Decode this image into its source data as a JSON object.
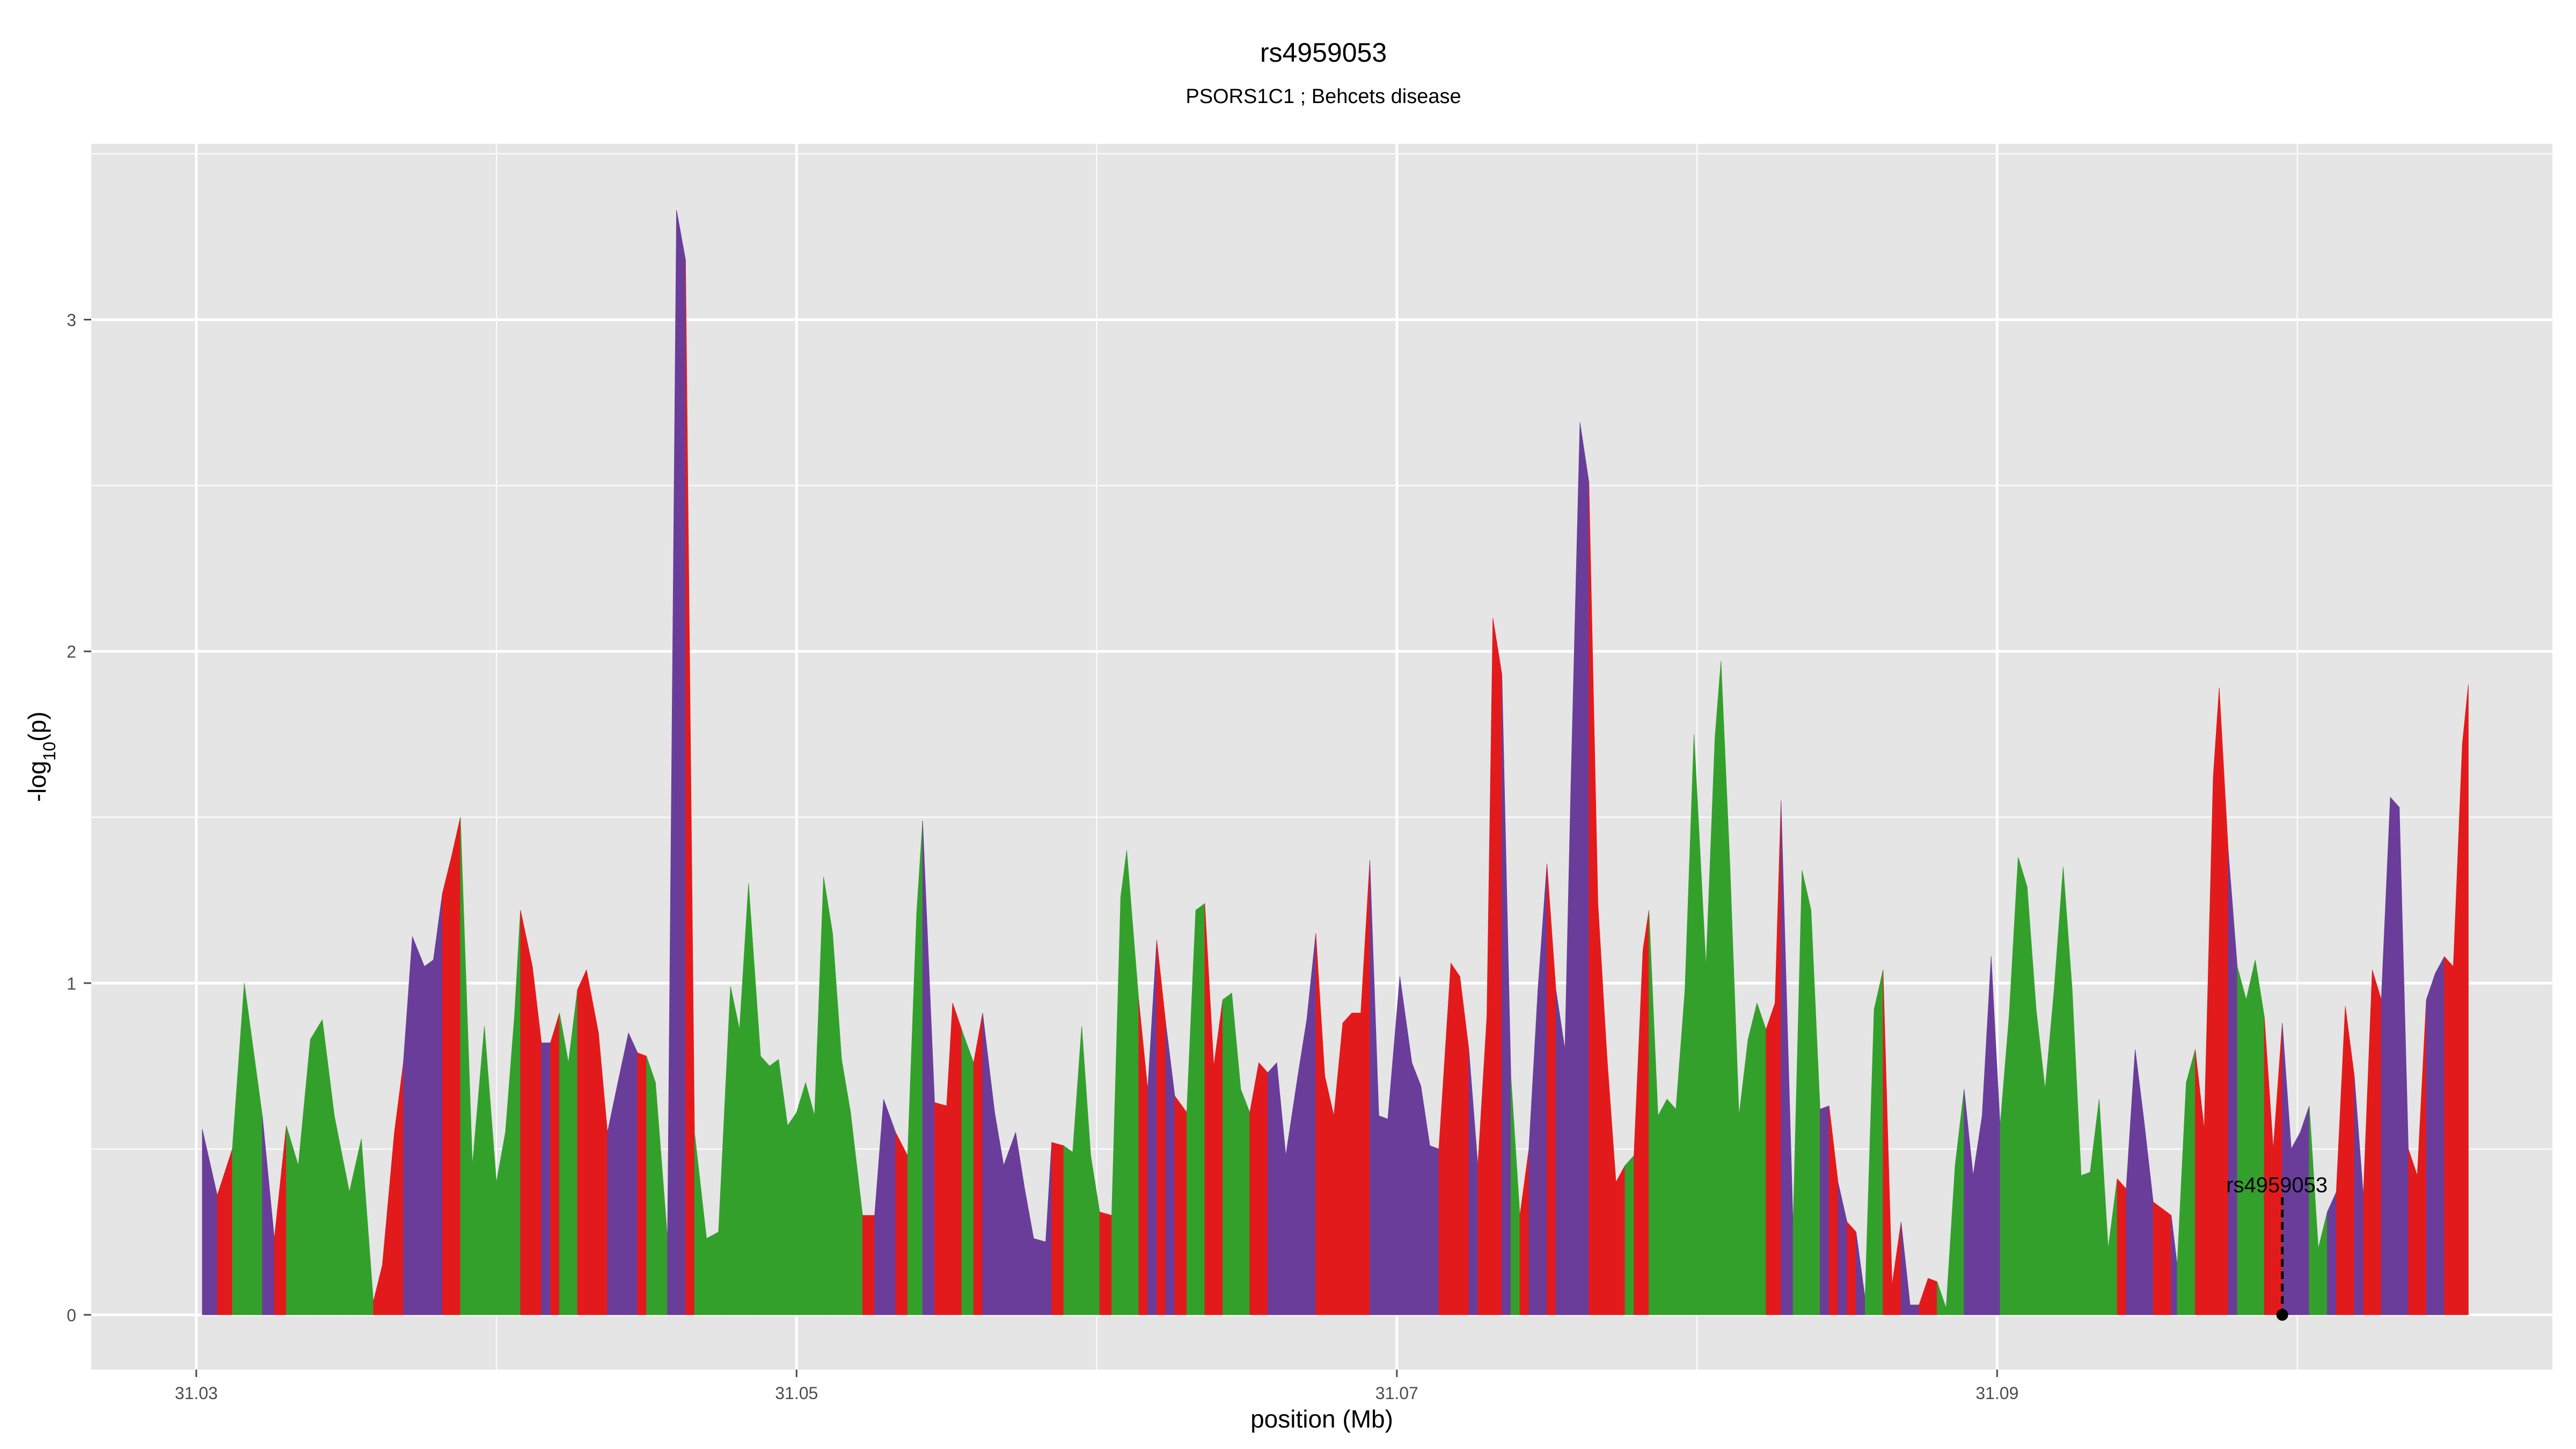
{
  "chart_data": {
    "type": "area",
    "title": "rs4959053",
    "subtitle": "PSORS1C1 ; Behcets disease",
    "xlabel": "position (Mb)",
    "ylabel": "-log10(p)",
    "xlim": [
      31.0265,
      31.1085
    ],
    "ylim": [
      -0.165,
      3.53
    ],
    "grid": true,
    "x_ticks": [
      31.03,
      31.05,
      31.07,
      31.09
    ],
    "x_tick_labels": [
      "31.03",
      "31.05",
      "31.07",
      "31.09"
    ],
    "y_ticks": [
      0,
      1,
      2,
      3
    ],
    "y_tick_labels": [
      "0",
      "1",
      "2",
      "3"
    ],
    "colors": {
      "green": "#33a02c",
      "red": "#e31a1c",
      "purple": "#6a3d9a",
      "panel": "#e5e5e5",
      "grid": "#ffffff"
    },
    "highlight": {
      "snp": "rs4959053",
      "x": 31.0995,
      "y": 0.0,
      "label_y": 0.37
    },
    "points": [
      [
        31.0302,
        0.56,
        "green"
      ],
      [
        31.0307,
        0.36,
        "purple"
      ],
      [
        31.0312,
        0.5,
        "red"
      ],
      [
        31.0316,
        1.0,
        "green"
      ],
      [
        31.0322,
        0.6,
        "green"
      ],
      [
        31.0326,
        0.23,
        "purple"
      ],
      [
        31.033,
        0.57,
        "red"
      ],
      [
        31.0334,
        0.45,
        "green"
      ],
      [
        31.0338,
        0.83,
        "green"
      ],
      [
        31.0342,
        0.89,
        "green"
      ],
      [
        31.0346,
        0.6,
        "green"
      ],
      [
        31.0351,
        0.37,
        "green"
      ],
      [
        31.0355,
        0.53,
        "green"
      ],
      [
        31.0359,
        0.04,
        "green"
      ],
      [
        31.0362,
        0.15,
        "red"
      ],
      [
        31.0366,
        0.55,
        "red"
      ],
      [
        31.0369,
        0.76,
        "red"
      ],
      [
        31.0372,
        1.14,
        "purple"
      ],
      [
        31.0376,
        1.05,
        "purple"
      ],
      [
        31.0379,
        1.07,
        "purple"
      ],
      [
        31.0382,
        1.27,
        "purple"
      ],
      [
        31.0385,
        1.38,
        "red"
      ],
      [
        31.0388,
        1.5,
        "red"
      ],
      [
        31.0392,
        0.45,
        "green"
      ],
      [
        31.0396,
        0.87,
        "green"
      ],
      [
        31.04,
        0.4,
        "green"
      ],
      [
        31.0403,
        0.55,
        "green"
      ],
      [
        31.0406,
        0.9,
        "green"
      ],
      [
        31.0408,
        1.22,
        "green"
      ],
      [
        31.0412,
        1.05,
        "red"
      ],
      [
        31.0415,
        0.82,
        "red"
      ],
      [
        31.0418,
        0.82,
        "purple"
      ],
      [
        31.0421,
        0.91,
        "red"
      ],
      [
        31.0424,
        0.76,
        "green"
      ],
      [
        31.0427,
        0.98,
        "green"
      ],
      [
        31.043,
        1.04,
        "red"
      ],
      [
        31.0434,
        0.85,
        "red"
      ],
      [
        31.0437,
        0.55,
        "red"
      ],
      [
        31.044,
        0.68,
        "purple"
      ],
      [
        31.0444,
        0.85,
        "purple"
      ],
      [
        31.0447,
        0.79,
        "purple"
      ],
      [
        31.045,
        0.78,
        "red"
      ],
      [
        31.0453,
        0.7,
        "green"
      ],
      [
        31.0457,
        0.23,
        "green"
      ],
      [
        31.046,
        3.33,
        "purple"
      ],
      [
        31.0463,
        3.18,
        "purple"
      ],
      [
        31.0466,
        0.55,
        "red"
      ],
      [
        31.047,
        0.23,
        "green"
      ],
      [
        31.0474,
        0.25,
        "green"
      ],
      [
        31.0478,
        0.99,
        "green"
      ],
      [
        31.0481,
        0.86,
        "green"
      ],
      [
        31.0484,
        1.3,
        "green"
      ],
      [
        31.0488,
        0.78,
        "green"
      ],
      [
        31.0491,
        0.75,
        "green"
      ],
      [
        31.0494,
        0.77,
        "green"
      ],
      [
        31.0497,
        0.57,
        "green"
      ],
      [
        31.05,
        0.61,
        "green"
      ],
      [
        31.0503,
        0.7,
        "green"
      ],
      [
        31.0506,
        0.6,
        "green"
      ],
      [
        31.0509,
        1.32,
        "green"
      ],
      [
        31.0512,
        1.15,
        "green"
      ],
      [
        31.0515,
        0.77,
        "green"
      ],
      [
        31.0518,
        0.61,
        "green"
      ],
      [
        31.0522,
        0.3,
        "green"
      ],
      [
        31.0526,
        0.3,
        "red"
      ],
      [
        31.0529,
        0.65,
        "purple"
      ],
      [
        31.0533,
        0.55,
        "purple"
      ],
      [
        31.0537,
        0.48,
        "red"
      ],
      [
        31.054,
        1.21,
        "green"
      ],
      [
        31.0542,
        1.49,
        "green"
      ],
      [
        31.0546,
        0.64,
        "purple"
      ],
      [
        31.055,
        0.63,
        "red"
      ],
      [
        31.0552,
        0.94,
        "red"
      ],
      [
        31.0555,
        0.86,
        "red"
      ],
      [
        31.0559,
        0.76,
        "green"
      ],
      [
        31.0562,
        0.91,
        "red"
      ],
      [
        31.0566,
        0.61,
        "purple"
      ],
      [
        31.0569,
        0.45,
        "purple"
      ],
      [
        31.0573,
        0.55,
        "purple"
      ],
      [
        31.0576,
        0.38,
        "purple"
      ],
      [
        31.0579,
        0.23,
        "purple"
      ],
      [
        31.0583,
        0.22,
        "purple"
      ],
      [
        31.0585,
        0.52,
        "purple"
      ],
      [
        31.0589,
        0.51,
        "red"
      ],
      [
        31.0592,
        0.49,
        "green"
      ],
      [
        31.0595,
        0.87,
        "green"
      ],
      [
        31.0598,
        0.48,
        "green"
      ],
      [
        31.0601,
        0.31,
        "green"
      ],
      [
        31.0605,
        0.3,
        "red"
      ],
      [
        31.0608,
        1.26,
        "green"
      ],
      [
        31.061,
        1.4,
        "green"
      ],
      [
        31.0614,
        0.95,
        "green"
      ],
      [
        31.0617,
        0.68,
        "red"
      ],
      [
        31.062,
        1.13,
        "purple"
      ],
      [
        31.0623,
        0.88,
        "red"
      ],
      [
        31.0626,
        0.66,
        "purple"
      ],
      [
        31.063,
        0.61,
        "red"
      ],
      [
        31.0633,
        1.22,
        "green"
      ],
      [
        31.0636,
        1.24,
        "green"
      ],
      [
        31.0639,
        0.75,
        "red"
      ],
      [
        31.0642,
        0.95,
        "red"
      ],
      [
        31.0645,
        0.97,
        "green"
      ],
      [
        31.0648,
        0.68,
        "green"
      ],
      [
        31.0651,
        0.61,
        "green"
      ],
      [
        31.0654,
        0.76,
        "red"
      ],
      [
        31.0657,
        0.73,
        "red"
      ],
      [
        31.066,
        0.76,
        "purple"
      ],
      [
        31.0663,
        0.48,
        "purple"
      ],
      [
        31.0667,
        0.72,
        "purple"
      ],
      [
        31.067,
        0.89,
        "purple"
      ],
      [
        31.0673,
        1.15,
        "purple"
      ],
      [
        31.0676,
        0.72,
        "red"
      ],
      [
        31.0679,
        0.6,
        "red"
      ],
      [
        31.0682,
        0.88,
        "red"
      ],
      [
        31.0685,
        0.91,
        "red"
      ],
      [
        31.0688,
        0.91,
        "red"
      ],
      [
        31.0691,
        1.37,
        "red"
      ],
      [
        31.0694,
        0.6,
        "purple"
      ],
      [
        31.0697,
        0.59,
        "purple"
      ],
      [
        31.0701,
        1.02,
        "purple"
      ],
      [
        31.0705,
        0.76,
        "purple"
      ],
      [
        31.0708,
        0.69,
        "purple"
      ],
      [
        31.0711,
        0.51,
        "purple"
      ],
      [
        31.0714,
        0.5,
        "purple"
      ],
      [
        31.0718,
        1.06,
        "red"
      ],
      [
        31.0721,
        1.02,
        "red"
      ],
      [
        31.0724,
        0.8,
        "red"
      ],
      [
        31.0727,
        0.45,
        "purple"
      ],
      [
        31.073,
        0.9,
        "red"
      ],
      [
        31.0732,
        2.1,
        "red"
      ],
      [
        31.0735,
        1.93,
        "red"
      ],
      [
        31.0738,
        0.72,
        "purple"
      ],
      [
        31.0741,
        0.3,
        "green"
      ],
      [
        31.0744,
        0.5,
        "red"
      ],
      [
        31.0747,
        0.98,
        "purple"
      ],
      [
        31.075,
        1.36,
        "purple"
      ],
      [
        31.0753,
        0.98,
        "red"
      ],
      [
        31.0756,
        0.8,
        "purple"
      ],
      [
        31.0758,
        1.6,
        "purple"
      ],
      [
        31.0761,
        2.69,
        "purple"
      ],
      [
        31.0764,
        2.51,
        "purple"
      ],
      [
        31.0767,
        1.24,
        "red"
      ],
      [
        31.077,
        0.78,
        "red"
      ],
      [
        31.0773,
        0.4,
        "red"
      ],
      [
        31.0776,
        0.45,
        "red"
      ],
      [
        31.0779,
        0.48,
        "green"
      ],
      [
        31.0782,
        1.1,
        "red"
      ],
      [
        31.0784,
        1.22,
        "red"
      ],
      [
        31.0787,
        0.6,
        "green"
      ],
      [
        31.079,
        0.65,
        "green"
      ],
      [
        31.0793,
        0.62,
        "green"
      ],
      [
        31.0796,
        0.98,
        "green"
      ],
      [
        31.0799,
        1.75,
        "green"
      ],
      [
        31.0803,
        1.05,
        "green"
      ],
      [
        31.0806,
        1.74,
        "green"
      ],
      [
        31.0808,
        1.97,
        "green"
      ],
      [
        31.0811,
        1.35,
        "green"
      ],
      [
        31.0814,
        0.6,
        "green"
      ],
      [
        31.0817,
        0.83,
        "green"
      ],
      [
        31.082,
        0.94,
        "green"
      ],
      [
        31.0823,
        0.86,
        "green"
      ],
      [
        31.0826,
        0.94,
        "red"
      ],
      [
        31.0828,
        1.55,
        "red"
      ],
      [
        31.0832,
        0.27,
        "purple"
      ],
      [
        31.0835,
        1.34,
        "green"
      ],
      [
        31.0838,
        1.22,
        "green"
      ],
      [
        31.0841,
        0.62,
        "green"
      ],
      [
        31.0844,
        0.63,
        "purple"
      ],
      [
        31.0847,
        0.4,
        "red"
      ],
      [
        31.085,
        0.28,
        "purple"
      ],
      [
        31.0853,
        0.25,
        "red"
      ],
      [
        31.0856,
        0.05,
        "purple"
      ],
      [
        31.0859,
        0.92,
        "green"
      ],
      [
        31.0862,
        1.04,
        "green"
      ],
      [
        31.0865,
        0.09,
        "red"
      ],
      [
        31.0868,
        0.28,
        "red"
      ],
      [
        31.0871,
        0.03,
        "purple"
      ],
      [
        31.0874,
        0.03,
        "purple"
      ],
      [
        31.0877,
        0.11,
        "red"
      ],
      [
        31.088,
        0.1,
        "red"
      ],
      [
        31.0883,
        0.02,
        "green"
      ],
      [
        31.0886,
        0.45,
        "green"
      ],
      [
        31.0889,
        0.68,
        "green"
      ],
      [
        31.0892,
        0.42,
        "purple"
      ],
      [
        31.0895,
        0.6,
        "purple"
      ],
      [
        31.0898,
        1.08,
        "purple"
      ],
      [
        31.0901,
        0.57,
        "purple"
      ],
      [
        31.0904,
        0.9,
        "green"
      ],
      [
        31.0907,
        1.38,
        "green"
      ],
      [
        31.091,
        1.29,
        "green"
      ],
      [
        31.0913,
        0.92,
        "green"
      ],
      [
        31.0916,
        0.68,
        "green"
      ],
      [
        31.0919,
        0.98,
        "green"
      ],
      [
        31.0922,
        1.35,
        "green"
      ],
      [
        31.0925,
        0.98,
        "green"
      ],
      [
        31.0928,
        0.42,
        "green"
      ],
      [
        31.0931,
        0.43,
        "green"
      ],
      [
        31.0934,
        0.65,
        "green"
      ],
      [
        31.0937,
        0.2,
        "green"
      ],
      [
        31.094,
        0.41,
        "green"
      ],
      [
        31.0943,
        0.38,
        "red"
      ],
      [
        31.0946,
        0.8,
        "purple"
      ],
      [
        31.0949,
        0.58,
        "purple"
      ],
      [
        31.0952,
        0.34,
        "purple"
      ],
      [
        31.0955,
        0.32,
        "red"
      ],
      [
        31.0958,
        0.3,
        "red"
      ],
      [
        31.096,
        0.15,
        "purple"
      ],
      [
        31.0963,
        0.7,
        "green"
      ],
      [
        31.0966,
        0.8,
        "green"
      ],
      [
        31.0969,
        0.56,
        "red"
      ],
      [
        31.0972,
        1.62,
        "red"
      ],
      [
        31.0974,
        1.89,
        "red"
      ],
      [
        31.0977,
        1.4,
        "red"
      ],
      [
        31.098,
        1.05,
        "purple"
      ],
      [
        31.0983,
        0.95,
        "green"
      ],
      [
        31.0986,
        1.07,
        "green"
      ],
      [
        31.0989,
        0.9,
        "green"
      ],
      [
        31.0992,
        0.5,
        "red"
      ],
      [
        31.0995,
        0.88,
        "red"
      ],
      [
        31.0998,
        0.5,
        "purple"
      ],
      [
        31.1001,
        0.55,
        "purple"
      ],
      [
        31.1004,
        0.63,
        "purple"
      ],
      [
        31.1007,
        0.2,
        "green"
      ],
      [
        31.101,
        0.31,
        "green"
      ],
      [
        31.1013,
        0.37,
        "purple"
      ],
      [
        31.1016,
        0.93,
        "red"
      ],
      [
        31.1019,
        0.72,
        "red"
      ],
      [
        31.1022,
        0.36,
        "purple"
      ],
      [
        31.1025,
        1.04,
        "red"
      ],
      [
        31.1028,
        0.95,
        "red"
      ],
      [
        31.1031,
        1.56,
        "purple"
      ],
      [
        31.1034,
        1.53,
        "purple"
      ],
      [
        31.1037,
        0.5,
        "purple"
      ],
      [
        31.104,
        0.42,
        "red"
      ],
      [
        31.1043,
        0.95,
        "red"
      ],
      [
        31.1046,
        1.03,
        "purple"
      ],
      [
        31.1049,
        1.08,
        "purple"
      ],
      [
        31.1052,
        1.05,
        "red"
      ],
      [
        31.1055,
        1.72,
        "red"
      ],
      [
        31.1057,
        1.9,
        "red"
      ]
    ]
  }
}
